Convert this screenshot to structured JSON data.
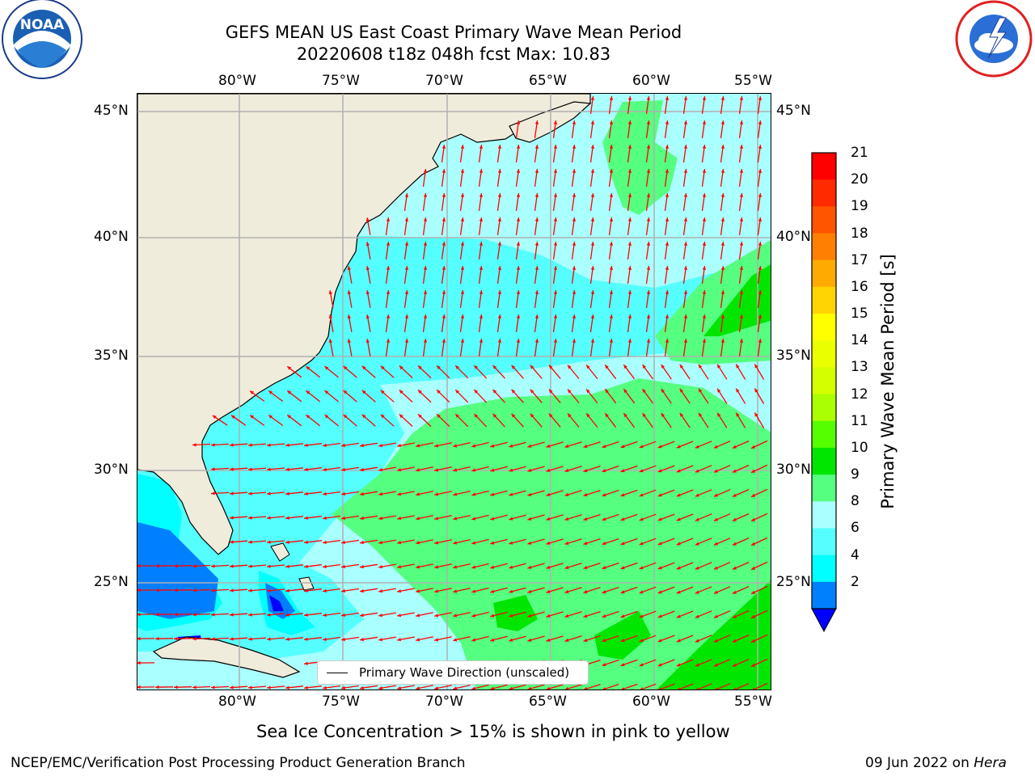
{
  "header": {
    "title_line1": "GEFS MEAN US East Coast Primary Wave Mean Period",
    "title_line2": "20220608 t18z 048h fcst   Max: 10.83"
  },
  "logos": {
    "left": "NOAA",
    "right": "NATIONAL WEATHER SERVICE"
  },
  "map": {
    "lon_ticks_top": [
      "80°W",
      "75°W",
      "70°W",
      "65°W",
      "60°W",
      "55°W"
    ],
    "lon_ticks_bottom": [
      "80°W",
      "75°W",
      "70°W",
      "65°W",
      "60°W",
      "55°W"
    ],
    "lat_ticks_left": [
      "45°N",
      "40°N",
      "35°N",
      "30°N",
      "25°N"
    ],
    "lat_ticks_right": [
      "45°N",
      "40°N",
      "35°N",
      "30°N",
      "25°N"
    ],
    "legend_label": "Primary Wave Direction (unscaled)",
    "land_color": "#efecdc",
    "arrow_color": "#ff0000"
  },
  "colorbar": {
    "label": "Primary Wave Mean Period [s]",
    "ticks": [
      "21",
      "20",
      "19",
      "18",
      "17",
      "16",
      "15",
      "14",
      "13",
      "12",
      "11",
      "10",
      "9",
      "8",
      "6",
      "4",
      "2"
    ],
    "colors": [
      "#ff0000",
      "#ff2a00",
      "#ff5500",
      "#ff8000",
      "#ffaa00",
      "#ffd400",
      "#ffff00",
      "#eaff00",
      "#d4ff00",
      "#aaff00",
      "#55ff00",
      "#00e600",
      "#55ff7f",
      "#aaffff",
      "#55ffff",
      "#00ffff",
      "#0080ff",
      "#0000ff"
    ]
  },
  "caption": "Sea Ice Concentration > 15% is shown in pink to yellow",
  "footer": {
    "left": "NCEP/EMC/Verification Post Processing Product Generation Branch",
    "right_date": "09 Jun 2022 on ",
    "right_host": "Hera"
  }
}
